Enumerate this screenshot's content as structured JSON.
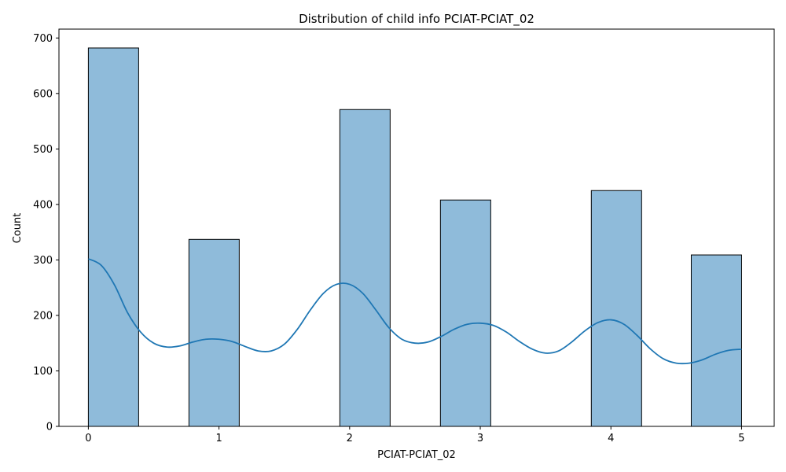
{
  "chart_data": {
    "type": "bar",
    "title": "Distribution of child info PCIAT-PCIAT_02",
    "xlabel": "PCIAT-PCIAT_02",
    "ylabel": "Count",
    "xlim": [
      -0.225,
      5.25
    ],
    "ylim": [
      0,
      716
    ],
    "x_ticks": [
      0,
      1,
      2,
      3,
      4,
      5
    ],
    "y_ticks": [
      0,
      100,
      200,
      300,
      400,
      500,
      600,
      700
    ],
    "bins": [
      {
        "x0": 0.0,
        "x1": 0.385,
        "value": 682
      },
      {
        "x0": 0.77,
        "x1": 1.155,
        "value": 337
      },
      {
        "x0": 1.925,
        "x1": 2.31,
        "value": 571
      },
      {
        "x0": 2.695,
        "x1": 3.08,
        "value": 408
      },
      {
        "x0": 3.85,
        "x1": 4.235,
        "value": 425
      },
      {
        "x0": 4.615,
        "x1": 5.0,
        "value": 309
      }
    ],
    "kde": {
      "x": [
        0,
        0.1,
        0.2,
        0.3,
        0.4,
        0.5,
        0.6,
        0.7,
        0.8,
        0.9,
        1.0,
        1.1,
        1.2,
        1.3,
        1.4,
        1.5,
        1.6,
        1.7,
        1.8,
        1.9,
        2.0,
        2.1,
        2.2,
        2.3,
        2.4,
        2.5,
        2.6,
        2.7,
        2.8,
        2.9,
        3.0,
        3.1,
        3.2,
        3.3,
        3.4,
        3.5,
        3.6,
        3.7,
        3.8,
        3.9,
        4.0,
        4.1,
        4.2,
        4.3,
        4.4,
        4.5,
        4.6,
        4.7,
        4.8,
        4.9,
        5.0
      ],
      "y": [
        302,
        290,
        255,
        205,
        170,
        150,
        143,
        145,
        152,
        157,
        157,
        153,
        144,
        136,
        136,
        148,
        175,
        210,
        240,
        256,
        256,
        240,
        210,
        178,
        157,
        150,
        152,
        162,
        175,
        184,
        186,
        182,
        170,
        153,
        139,
        132,
        136,
        152,
        172,
        187,
        192,
        184,
        164,
        140,
        122,
        114,
        114,
        120,
        130,
        137,
        139
      ]
    },
    "colors": {
      "bar_fill": "#8fbbda",
      "bar_edge": "#000000",
      "kde_line": "#1f77b4"
    }
  }
}
